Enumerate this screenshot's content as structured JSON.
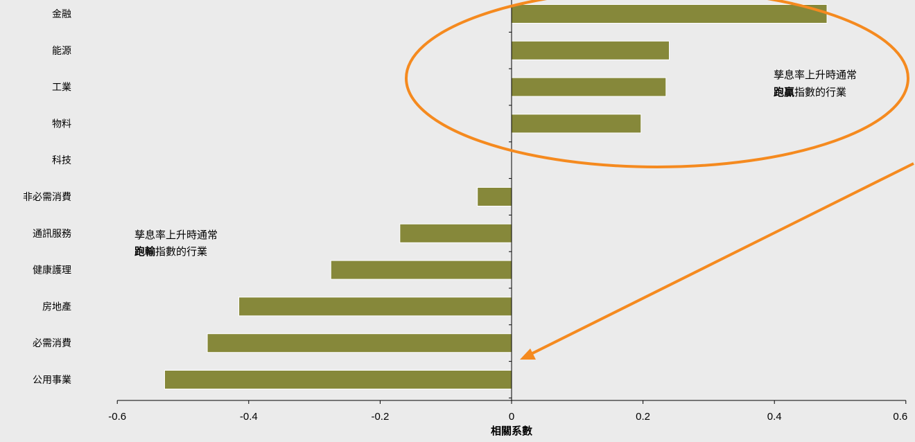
{
  "chart_data": {
    "type": "bar",
    "orientation": "horizontal",
    "title": "",
    "xlabel": "相關系數",
    "ylabel": "",
    "xlim": [
      -0.6,
      0.6
    ],
    "xticks": [
      "-0.6",
      "-0.4",
      "-0.2",
      "0",
      "0.2",
      "0.4",
      "0.6"
    ],
    "categories": [
      "金融",
      "能源",
      "工業",
      "物料",
      "科技",
      "非必需消費",
      "通訊服務",
      "健康護理",
      "房地產",
      "必需消費",
      "公用事業"
    ],
    "values": [
      0.48,
      0.24,
      0.235,
      0.197,
      0.0,
      -0.052,
      -0.17,
      -0.275,
      -0.415,
      -0.463,
      -0.528
    ],
    "grid": false,
    "bar_color": "#86883a",
    "highlight_color": "#f58a1f",
    "annotations": {
      "winners": {
        "line1": "孳息率上升時通常",
        "bold": "跑贏",
        "rest": "指數的行業"
      },
      "losers": {
        "line1": "孳息率上升時通常",
        "bold": "跑輸",
        "rest": "指數的行業"
      }
    }
  }
}
